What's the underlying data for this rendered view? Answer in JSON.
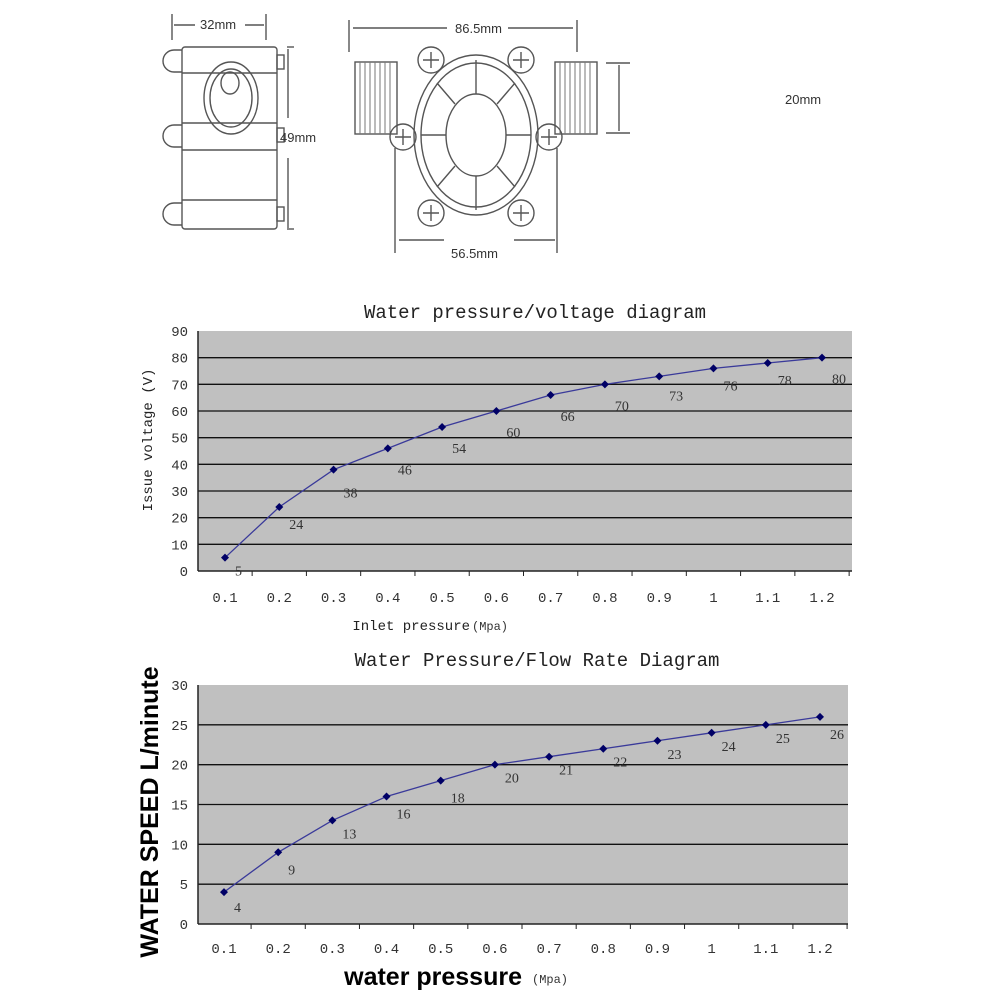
{
  "drawing": {
    "dim_width_side": "32mm",
    "dim_height_side": "49mm",
    "dim_total_length": "86.5mm",
    "dim_thread_diameter": "20mm",
    "dim_body_width": "56.5mm"
  },
  "chart_data": [
    {
      "type": "line",
      "title": "Water pressure/voltage diagram",
      "xlabel": "Inlet pressure",
      "xlabel_unit": "(Mpa)",
      "ylabel": "Issue voltage (V)",
      "categories": [
        "0.1",
        "0.2",
        "0.3",
        "0.4",
        "0.5",
        "0.6",
        "0.7",
        "0.8",
        "0.9",
        "1",
        "1.1",
        "1.2"
      ],
      "values": [
        5,
        24,
        38,
        46,
        54,
        60,
        66,
        70,
        73,
        76,
        78,
        80
      ],
      "ylim": [
        0,
        90
      ],
      "yticks": [
        0,
        10,
        20,
        30,
        40,
        50,
        60,
        70,
        80,
        90
      ],
      "grid": true,
      "plot_bg": "#c0c0c0",
      "line_color": "#000066"
    },
    {
      "type": "line",
      "title": "Water Pressure/Flow Rate Diagram",
      "xlabel": "water pressure",
      "xlabel_unit": "(Mpa)",
      "ylabel": "WATER SPEED L/minute",
      "categories": [
        "0.1",
        "0.2",
        "0.3",
        "0.4",
        "0.5",
        "0.6",
        "0.7",
        "0.8",
        "0.9",
        "1",
        "1.1",
        "1.2"
      ],
      "values": [
        4,
        9,
        13,
        16,
        18,
        20,
        21,
        22,
        23,
        24,
        25,
        26
      ],
      "ylim": [
        0,
        30
      ],
      "yticks": [
        0,
        5,
        10,
        15,
        20,
        25,
        30
      ],
      "grid": true,
      "plot_bg": "#c0c0c0",
      "line_color": "#000066"
    }
  ]
}
